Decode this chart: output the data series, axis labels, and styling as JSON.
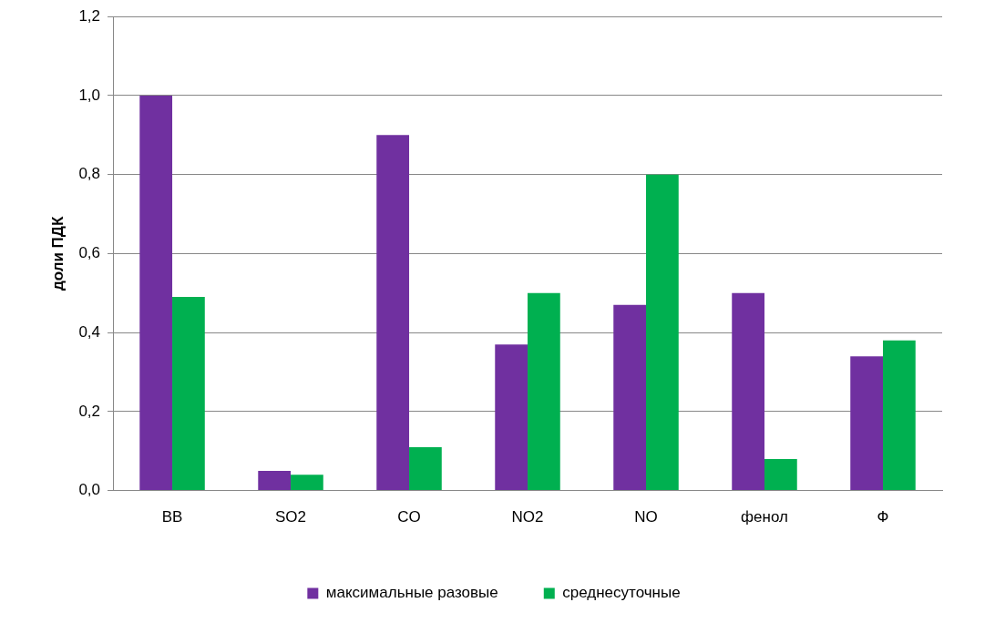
{
  "chart_data": {
    "type": "bar",
    "ylabel": "доли ПДК",
    "categories": [
      "ВВ",
      "SO2",
      "CO",
      "NO2",
      "NO",
      "фенол",
      "Ф"
    ],
    "series": [
      {
        "name": "максимальные разовые",
        "color": "#7030a0",
        "values": [
          1.0,
          0.05,
          0.9,
          0.37,
          0.47,
          0.5,
          0.34
        ]
      },
      {
        "name": "среднесуточные",
        "color": "#00b050",
        "values": [
          0.49,
          0.04,
          0.11,
          0.5,
          0.8,
          0.08,
          0.38
        ]
      }
    ],
    "ylim": [
      0,
      1.2
    ],
    "yticks": [
      {
        "value": 0,
        "label": "0,0"
      },
      {
        "value": 0.2,
        "label": "0,2"
      },
      {
        "value": 0.4,
        "label": "0,4"
      },
      {
        "value": 0.6,
        "label": "0,6"
      },
      {
        "value": 0.8,
        "label": "0,8"
      },
      {
        "value": 1.0,
        "label": "1,0"
      },
      {
        "value": 1.2,
        "label": "1,2"
      }
    ],
    "grid": "y",
    "legend": "bottom"
  }
}
